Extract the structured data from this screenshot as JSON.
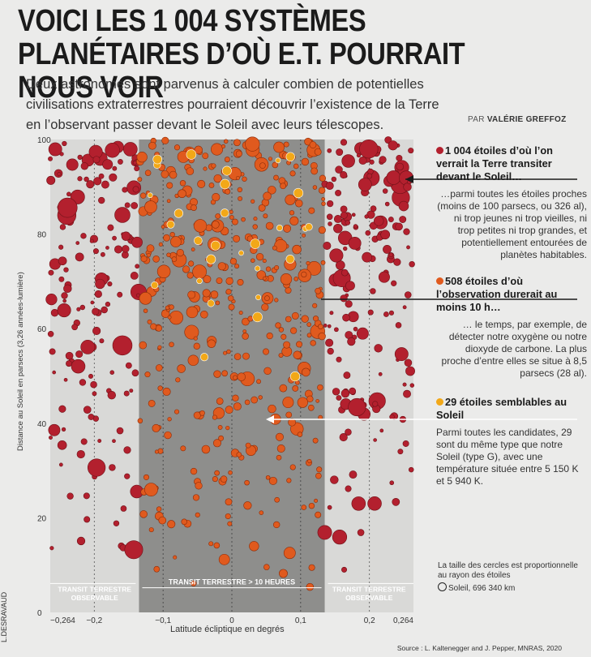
{
  "title": "VOICI LES 1 004 SYSTÈMES PLANÉTAIRES D’OÙ E.T. POURRAIT NOUS VOIR",
  "subtitle": "Deux astronomes sont parvenus à calculer combien de potentielles civilisations extraterrestres pourraient découvrir l’existence de la Terre en l’observant passer devant le Soleil avec leurs télescopes.",
  "byline_prefix": "PAR",
  "byline_name": "VALÉRIE GREFFOZ",
  "legend": {
    "red": {
      "head": "1 004 étoiles d’où l’on verrait la Terre transiter devant le Soleil…",
      "body": "…parmi toutes les étoiles proches (moins de 100 parsecs, ou 326 al), ni trop jeunes ni trop vieilles, ni trop petites ni trop grandes, et potentiellement entourées de planètes habitables.",
      "color": "#b3202e"
    },
    "orange": {
      "head": "508 étoiles d’où l’observation durerait au moins 10 h…",
      "body": "… le temps, par exemple, de détecter notre oxygène ou notre dioxyde de carbone. La plus proche d’entre elles se situe à 8,5 parsecs (28 al).",
      "color": "#e05a1e"
    },
    "yellow": {
      "head": "29 étoiles semblables au Soleil",
      "body": "Parmi toutes les candidates, 29 sont du même type que notre Soleil (type G), avec une température située entre 5 150 K et 5 940 K.",
      "color": "#f2a818"
    }
  },
  "size_note": "La taille des cercles est proportionnelle au rayon des étoiles",
  "size_ref": "Soleil, 696 340 km",
  "credit": "L.DESRAVAUD",
  "source": "Source : L. Kaltenegger and J. Pepper, MNRAS, 2020",
  "chart_data": {
    "type": "scatter",
    "xlabel": "Latitude écliptique en degrés",
    "ylabel": "Distance au Soleil en parsecs (3,26 années-lumière)",
    "xlim": [
      -0.264,
      0.264
    ],
    "ylim": [
      0,
      100
    ],
    "x_ticks": [
      "−0,264",
      "−0,2",
      "−0,1",
      "0",
      "0,1",
      "0,2",
      "0,264"
    ],
    "x_tick_values": [
      -0.264,
      -0.2,
      -0.1,
      0,
      0.1,
      0.2,
      0.264
    ],
    "y_ticks": [
      "0",
      "20",
      "40",
      "60",
      "80",
      "100"
    ],
    "y_tick_values": [
      0,
      20,
      40,
      60,
      80,
      100
    ],
    "band_labels": {
      "left": "TRANSIT TERRESTRE OBSERVABLE",
      "center": "TRANSIT TERRESTRE > 10 HEURES",
      "right": "TRANSIT TERRESTRE OBSERVABLE"
    },
    "inner_band": [
      -0.135,
      0.135
    ],
    "series": [
      {
        "name": "1 004 étoiles d’où l’on verrait la Terre transiter devant le Soleil",
        "color": "#b3202e",
        "count": 1004
      },
      {
        "name": "508 étoiles d’où l’observation durerait au moins 10 h",
        "color": "#e05a1e",
        "count": 508
      },
      {
        "name": "29 étoiles semblables au Soleil",
        "color": "#f2a818",
        "count": 29
      }
    ],
    "highlights": {
      "nearest_orange_parsecs": 8.5
    }
  }
}
